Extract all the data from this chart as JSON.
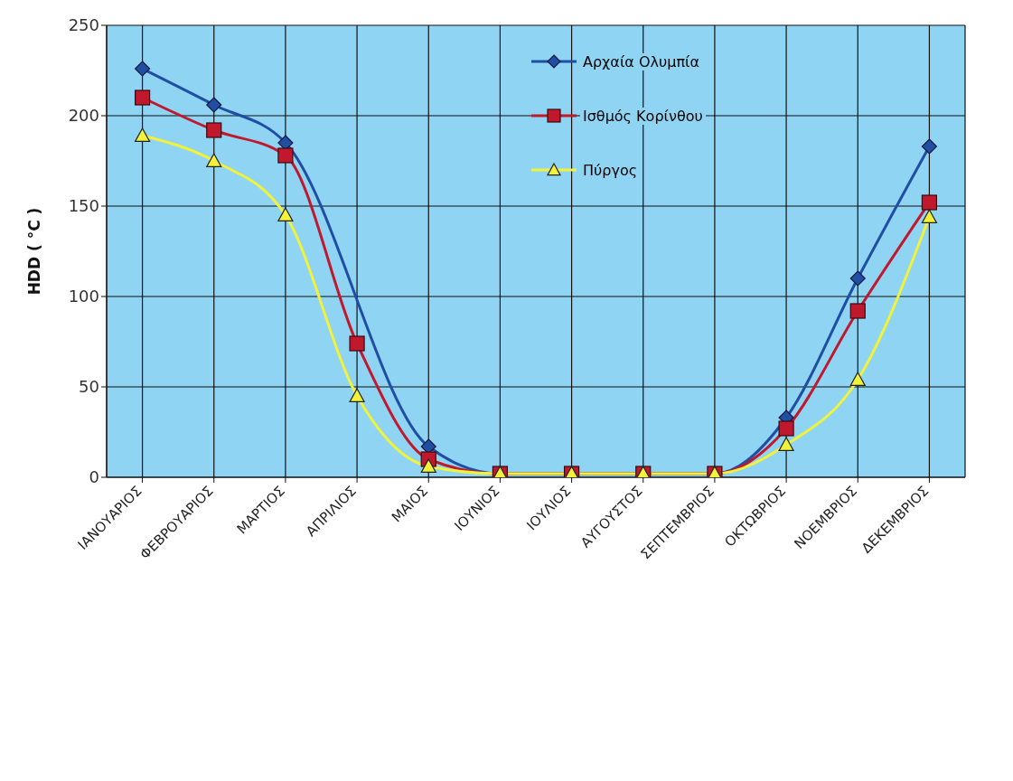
{
  "chart_data": {
    "type": "line",
    "ylabel": "HDD ( °C )",
    "categories": [
      "ΙΑΝΟΥΑΡΙΟΣ",
      "ΦΕΒΡΟΥΑΡΙΟΣ",
      "ΜΑΡΤΙΟΣ",
      "ΑΠΡΙΛΙΟΣ",
      "ΜΑΙΟΣ",
      "ΙΟΥΝΙΟΣ",
      "ΙΟΥΛΙΟΣ",
      "ΑΥΓΟΥΣΤΟΣ",
      "ΣΕΠΤΕΜΒΡΙΟΣ",
      "ΟΚΤΩΒΡΙΟΣ",
      "ΝΟΕΜΒΡΙΟΣ",
      "ΔΕΚΕΜΒΡΙΟΣ"
    ],
    "series": [
      {
        "name": "Αρχαία Ολυμπία",
        "color": "#1f4ea3",
        "marker": "diamond",
        "values": [
          226,
          206,
          185,
          null,
          17,
          2,
          2,
          2,
          2,
          33,
          110,
          183
        ]
      },
      {
        "name": "Ισθμός Κορίνθου",
        "color": "#c0182c",
        "marker": "square",
        "values": [
          210,
          192,
          178,
          74,
          10,
          2,
          2,
          2,
          2,
          27,
          92,
          152
        ]
      },
      {
        "name": "Πύργος",
        "color": "#f2f23a",
        "marker": "triangle",
        "values": [
          189,
          175,
          145,
          45,
          6,
          2,
          2,
          2,
          2,
          18,
          54,
          144
        ]
      }
    ],
    "ylim": [
      0,
      250
    ],
    "yticks": [
      0,
      50,
      100,
      150,
      200,
      250
    ],
    "grid": true,
    "legend": "top right"
  }
}
